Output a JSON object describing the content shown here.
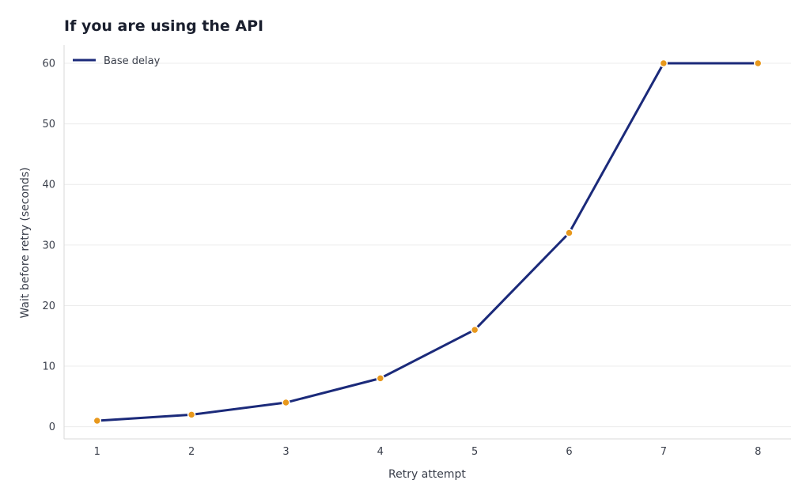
{
  "chart_data": {
    "type": "line",
    "title": "If you are using the API",
    "xlabel": "Retry attempt",
    "ylabel": "Wait before retry (seconds)",
    "x": [
      1,
      2,
      3,
      4,
      5,
      6,
      7,
      8
    ],
    "xticks": [
      "1",
      "2",
      "3",
      "4",
      "5",
      "6",
      "7",
      "8"
    ],
    "yticks": [
      "0",
      "10",
      "20",
      "30",
      "40",
      "50",
      "60"
    ],
    "xlim": [
      0.65,
      8.35
    ],
    "ylim": [
      -2,
      63
    ],
    "grid": "horizontal",
    "legend_position": "top-left",
    "series": [
      {
        "name": "Base delay",
        "values": [
          1,
          2,
          4,
          8,
          16,
          32,
          60,
          60
        ]
      }
    ]
  },
  "colors": {
    "line": "#1b2a7a",
    "marker": "#e8981c",
    "marker_edge": "#ffffff"
  }
}
